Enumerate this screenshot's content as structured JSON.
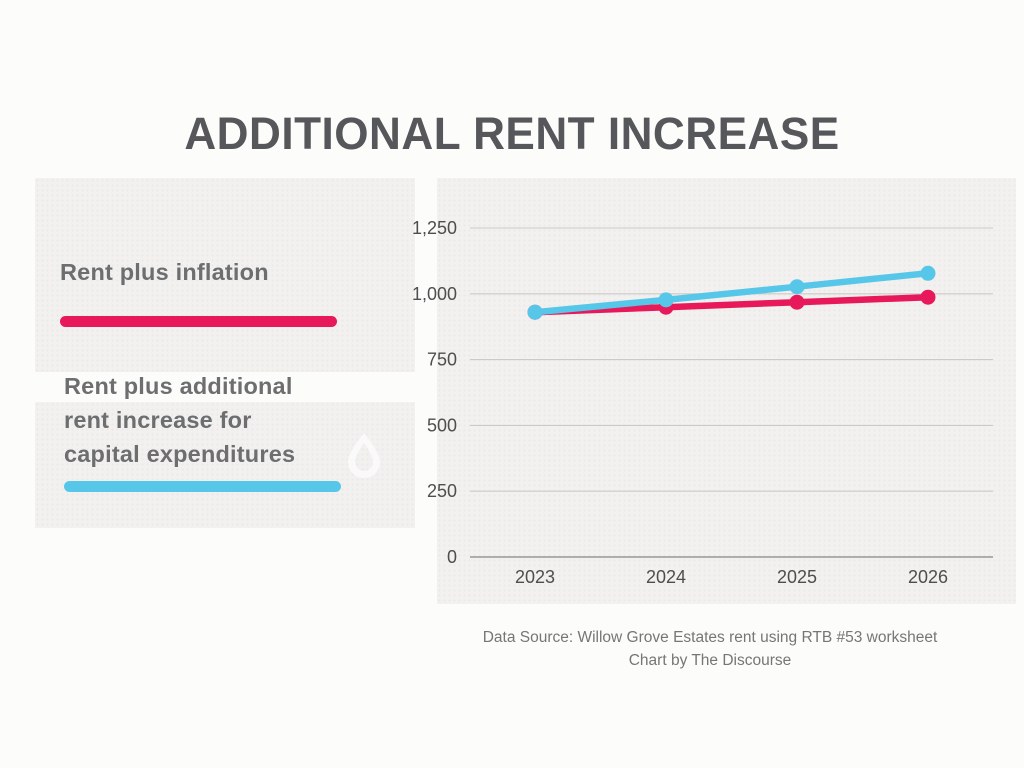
{
  "page": {
    "title": "ADDITIONAL RENT INCREASE",
    "background_color": "#fcfcfb",
    "panel_color": "#f2f1ef"
  },
  "legend": {
    "items": [
      {
        "label": "Rent plus inflation",
        "color": "#e8195a"
      },
      {
        "label": "Rent plus additional rent increase for capital expenditures",
        "label_lines": [
          "Rent plus additional",
          "rent increase for",
          "capital expenditures"
        ],
        "color": "#57c7e9"
      }
    ],
    "watermark_icon": "droplet-icon"
  },
  "chart_data": {
    "type": "line",
    "title": "ADDITIONAL RENT INCREASE",
    "categories": [
      "2023",
      "2024",
      "2025",
      "2026"
    ],
    "series": [
      {
        "name": "Rent plus inflation",
        "color": "#e8195a",
        "values": [
          930,
          949,
          968,
          987
        ]
      },
      {
        "name": "Rent plus additional rent increase for capital expenditures",
        "color": "#57c7e9",
        "values": [
          930,
          977,
          1027,
          1078
        ]
      }
    ],
    "xlabel": "",
    "ylabel": "",
    "ylim": [
      0,
      1250
    ],
    "yticks": [
      0,
      250,
      500,
      750,
      1000,
      1250
    ],
    "ytick_labels": [
      "0",
      "250",
      "500",
      "750",
      "1,000",
      "1,250"
    ],
    "grid": true,
    "legend_position": "left",
    "colors": {
      "gridline": "#cbcac8",
      "axis_line": "#999896",
      "tick_text": "#4e4e4e"
    }
  },
  "footer": {
    "line1": "Data Source: Willow Grove Estates rent using RTB #53 worksheet",
    "line2": "Chart by The Discourse"
  }
}
